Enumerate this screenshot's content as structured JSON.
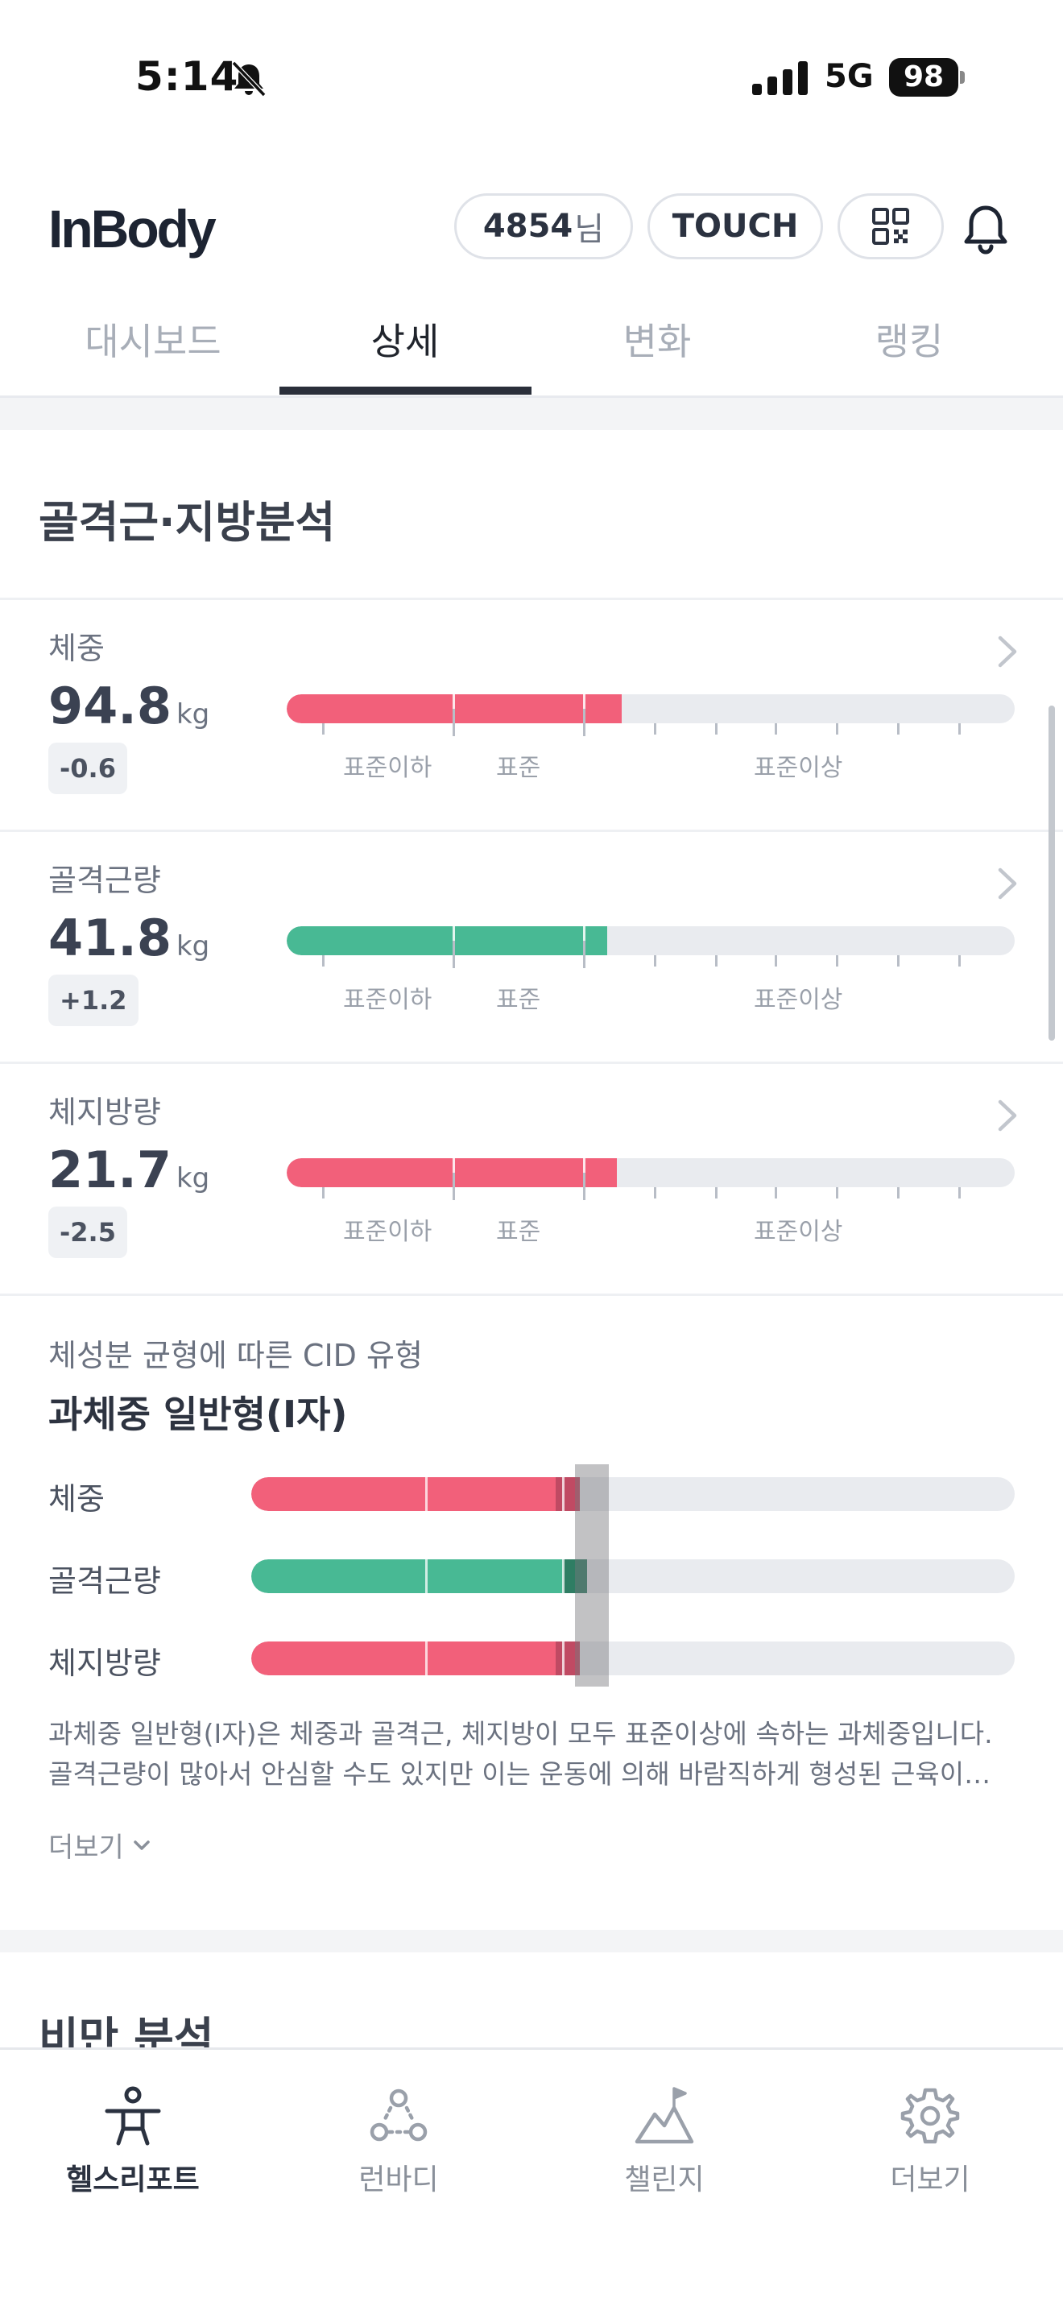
{
  "status_bar": {
    "time": "5:14",
    "network": "5G",
    "battery": "98"
  },
  "header": {
    "logo": "InBody",
    "user_id": "4854",
    "user_suffix": "님",
    "touch_label": "TOUCH"
  },
  "tabs": [
    {
      "label": "대시보드",
      "active": false
    },
    {
      "label": "상세",
      "active": true
    },
    {
      "label": "변화",
      "active": false
    },
    {
      "label": "랭킹",
      "active": false
    }
  ],
  "analysis": {
    "title": "골격근·지방분석",
    "scale_labels": {
      "below": "표준이하",
      "standard": "표준",
      "above": "표준이상"
    },
    "metrics": [
      {
        "label": "체중",
        "value": "94.8",
        "unit": "kg",
        "delta": "-0.6",
        "level": 0.46,
        "color": "#f2607a"
      },
      {
        "label": "골격근량",
        "value": "41.8",
        "unit": "kg",
        "delta": "+1.2",
        "level": 0.44,
        "color": "#48b994"
      },
      {
        "label": "체지방량",
        "value": "21.7",
        "unit": "kg",
        "delta": "-2.5",
        "level": 0.453,
        "color": "#f2607a"
      }
    ]
  },
  "cid": {
    "subtitle": "체성분 균형에 따른 CID 유형",
    "type": "과체중 일반형(I자)",
    "rows": [
      {
        "label": "체중",
        "level": 0.43,
        "color": "#f2607a",
        "tip_color": "#c04a63"
      },
      {
        "label": "골격근량",
        "level": 0.44,
        "color": "#48b994",
        "tip_color": "#2f7d63"
      },
      {
        "label": "체지방량",
        "level": 0.43,
        "color": "#f2607a",
        "tip_color": "#c04a63"
      }
    ],
    "description_line1": "과체중 일반형(I자)은 체중과 골격근, 체지방이 모두 표준이상에 속하는 과체중입니다.",
    "description_line2": "골격근량이 많아서 안심할 수도 있지만 이는 운동에 의해 바람직하게 형성된 근육이…",
    "more_label": "더보기"
  },
  "next_section_title": "비만 분석",
  "bottom_nav": [
    {
      "label": "헬스리포트",
      "icon": "person-icon",
      "active": true
    },
    {
      "label": "런바디",
      "icon": "people-icon",
      "active": false
    },
    {
      "label": "챌린지",
      "icon": "mountain-flag-icon",
      "active": false
    },
    {
      "label": "더보기",
      "icon": "gear-icon",
      "active": false
    }
  ]
}
